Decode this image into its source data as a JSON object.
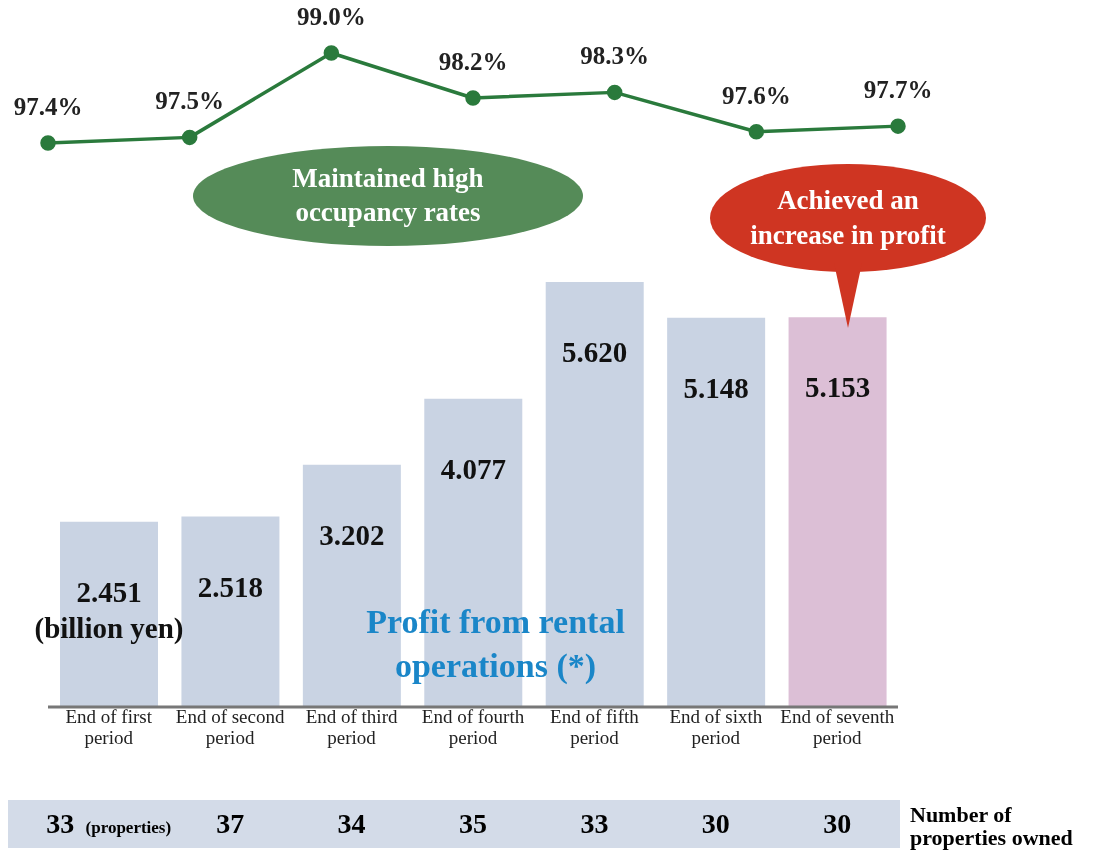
{
  "chart_data": [
    {
      "type": "line",
      "categories": [
        null,
        null,
        null,
        null,
        null,
        null,
        null
      ],
      "marker": "circle",
      "series": [
        {
          "color": "#2a7a3c",
          "values": [
            97.4,
            97.5,
            99.0,
            98.2,
            98.3,
            97.6,
            97.7
          ],
          "value_labels": [
            "97.4%",
            "97.5%",
            "99.0%",
            "98.2%",
            "98.3%",
            "97.6%",
            "97.7%"
          ]
        }
      ],
      "annotations": [
        "Maintained high occupancy rates"
      ]
    },
    {
      "type": "bar",
      "categories": [
        "End of first period",
        "End of second period",
        "End of third period",
        "End of fourth period",
        "End of fifth period",
        "End of sixth period",
        "End of seventh period"
      ],
      "series": [
        {
          "colors": [
            "#c9d3e3",
            "#c9d3e3",
            "#c9d3e3",
            "#c9d3e3",
            "#c9d3e3",
            "#c9d3e3",
            "#dcbfd6"
          ],
          "values": [
            2.451,
            2.518,
            3.202,
            4.077,
            5.62,
            5.148,
            5.153
          ],
          "value_labels": [
            "2.451 (billion yen)",
            "2.518",
            "3.202",
            "4.077",
            "5.620",
            "5.148",
            "5.153"
          ]
        }
      ],
      "annotations": [
        "Achieved an increase in profit",
        "Profit from rental operations (*)",
        "Number of properties owned",
        "33 (properties)",
        "37",
        "34",
        "35",
        "33",
        "30",
        "30"
      ]
    }
  ]
}
